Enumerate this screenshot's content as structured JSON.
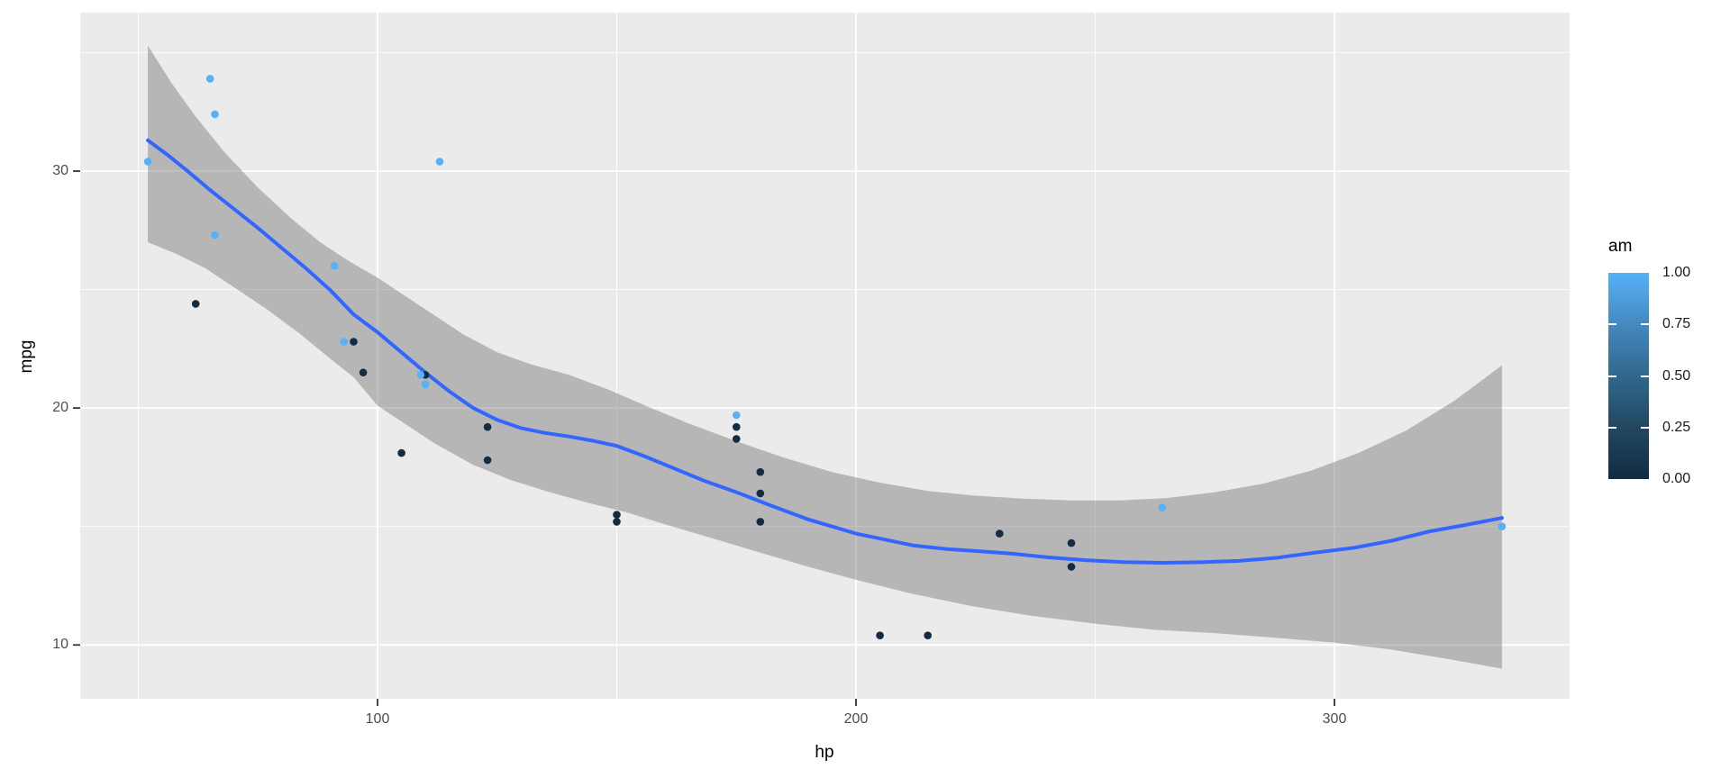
{
  "chart_data": {
    "type": "scatter",
    "title": "",
    "xlabel": "hp",
    "ylabel": "mpg",
    "x_domain": [
      37.85,
      349.15
    ],
    "y_domain": [
      7.73,
      36.69
    ],
    "x_major_ticks": [
      100,
      200,
      300
    ],
    "x_minor_ticks": [
      50,
      150,
      250
    ],
    "y_major_ticks": [
      10,
      20,
      30
    ],
    "y_minor_ticks": [
      15,
      25,
      35
    ],
    "grid": true,
    "legend_position": "right",
    "points_hp_mpg_am": [
      [
        110,
        21.0,
        1
      ],
      [
        110,
        21.0,
        1
      ],
      [
        93,
        22.8,
        1
      ],
      [
        110,
        21.4,
        0
      ],
      [
        175,
        18.7,
        0
      ],
      [
        105,
        18.1,
        0
      ],
      [
        245,
        14.3,
        0
      ],
      [
        62,
        24.4,
        0
      ],
      [
        95,
        22.8,
        0
      ],
      [
        123,
        19.2,
        0
      ],
      [
        123,
        17.8,
        0
      ],
      [
        180,
        16.4,
        0
      ],
      [
        180,
        17.3,
        0
      ],
      [
        180,
        15.2,
        0
      ],
      [
        205,
        10.4,
        0
      ],
      [
        215,
        10.4,
        0
      ],
      [
        230,
        14.7,
        0
      ],
      [
        66,
        32.4,
        1
      ],
      [
        52,
        30.4,
        1
      ],
      [
        65,
        33.9,
        1
      ],
      [
        97,
        21.5,
        0
      ],
      [
        150,
        15.5,
        0
      ],
      [
        150,
        15.2,
        0
      ],
      [
        245,
        13.3,
        0
      ],
      [
        175,
        19.2,
        0
      ],
      [
        66,
        27.3,
        1
      ],
      [
        91,
        26.0,
        1
      ],
      [
        113,
        30.4,
        1
      ],
      [
        264,
        15.8,
        1
      ],
      [
        175,
        19.7,
        1
      ],
      [
        335,
        15.0,
        1
      ],
      [
        109,
        21.4,
        1
      ]
    ],
    "smooth_line": [
      [
        52,
        31.3
      ],
      [
        56,
        30.7
      ],
      [
        60,
        30.05
      ],
      [
        65,
        29.2
      ],
      [
        70,
        28.4
      ],
      [
        75,
        27.6
      ],
      [
        80,
        26.75
      ],
      [
        85,
        25.9
      ],
      [
        90,
        25.0
      ],
      [
        95,
        23.95
      ],
      [
        100,
        23.2
      ],
      [
        105,
        22.35
      ],
      [
        110,
        21.5
      ],
      [
        115,
        20.7
      ],
      [
        120,
        20.0
      ],
      [
        125,
        19.5
      ],
      [
        130,
        19.15
      ],
      [
        135,
        18.95
      ],
      [
        140,
        18.8
      ],
      [
        145,
        18.62
      ],
      [
        150,
        18.4
      ],
      [
        156,
        17.95
      ],
      [
        162,
        17.45
      ],
      [
        168,
        16.95
      ],
      [
        175,
        16.45
      ],
      [
        182,
        15.9
      ],
      [
        190,
        15.3
      ],
      [
        195,
        15.0
      ],
      [
        200,
        14.7
      ],
      [
        206,
        14.45
      ],
      [
        212,
        14.2
      ],
      [
        219,
        14.05
      ],
      [
        226,
        13.95
      ],
      [
        233,
        13.85
      ],
      [
        240,
        13.7
      ],
      [
        248,
        13.58
      ],
      [
        256,
        13.5
      ],
      [
        264,
        13.47
      ],
      [
        272,
        13.49
      ],
      [
        280,
        13.55
      ],
      [
        288,
        13.68
      ],
      [
        296,
        13.9
      ],
      [
        304,
        14.1
      ],
      [
        312,
        14.4
      ],
      [
        320,
        14.8
      ],
      [
        327,
        15.05
      ],
      [
        335,
        15.36
      ]
    ],
    "ribbon_upper": [
      [
        52,
        35.3
      ],
      [
        57,
        33.7
      ],
      [
        62,
        32.3
      ],
      [
        68,
        30.8
      ],
      [
        75,
        29.3
      ],
      [
        82,
        28.0
      ],
      [
        88,
        27.0
      ],
      [
        94,
        26.2
      ],
      [
        100,
        25.5
      ],
      [
        106,
        24.7
      ],
      [
        112,
        23.9
      ],
      [
        118,
        23.1
      ],
      [
        125,
        22.35
      ],
      [
        132,
        21.85
      ],
      [
        140,
        21.4
      ],
      [
        148,
        20.8
      ],
      [
        156,
        20.1
      ],
      [
        165,
        19.35
      ],
      [
        175,
        18.6
      ],
      [
        185,
        17.9
      ],
      [
        195,
        17.3
      ],
      [
        205,
        16.85
      ],
      [
        215,
        16.5
      ],
      [
        225,
        16.3
      ],
      [
        235,
        16.18
      ],
      [
        245,
        16.1
      ],
      [
        255,
        16.1
      ],
      [
        265,
        16.2
      ],
      [
        275,
        16.45
      ],
      [
        285,
        16.8
      ],
      [
        295,
        17.35
      ],
      [
        305,
        18.1
      ],
      [
        315,
        19.05
      ],
      [
        325,
        20.3
      ],
      [
        335,
        21.8
      ]
    ],
    "ribbon_lower": [
      [
        52,
        27.0
      ],
      [
        58,
        26.5
      ],
      [
        64,
        25.9
      ],
      [
        70,
        25.1
      ],
      [
        77,
        24.15
      ],
      [
        84,
        23.1
      ],
      [
        90,
        22.1
      ],
      [
        95,
        21.3
      ],
      [
        100,
        20.1
      ],
      [
        106,
        19.3
      ],
      [
        112,
        18.5
      ],
      [
        120,
        17.6
      ],
      [
        128,
        16.95
      ],
      [
        136,
        16.45
      ],
      [
        144,
        16.0
      ],
      [
        152,
        15.6
      ],
      [
        160,
        15.1
      ],
      [
        170,
        14.5
      ],
      [
        180,
        13.9
      ],
      [
        190,
        13.3
      ],
      [
        200,
        12.75
      ],
      [
        212,
        12.15
      ],
      [
        224,
        11.65
      ],
      [
        236,
        11.25
      ],
      [
        250,
        10.9
      ],
      [
        262,
        10.65
      ],
      [
        275,
        10.5
      ],
      [
        288,
        10.3
      ],
      [
        300,
        10.1
      ],
      [
        312,
        9.8
      ],
      [
        324,
        9.4
      ],
      [
        335,
        9.0
      ]
    ],
    "legend": {
      "title": "am",
      "labels": [
        "1.00",
        "0.75",
        "0.50",
        "0.25",
        "0.00"
      ],
      "values": [
        1.0,
        0.75,
        0.5,
        0.25,
        0.0
      ],
      "gradient_stops": [
        "#56B1F7",
        "#4489C0",
        "#31688E",
        "#21485F",
        "#132B43"
      ]
    },
    "colors": {
      "am_high": "#56B1F7",
      "am_low": "#132B43",
      "smooth_line": "#3366FF",
      "ribbon": "rgba(102,102,102,0.4)",
      "panel_bg": "#EBEBEB",
      "grid": "#FFFFFF",
      "axis_text": "#4D4D4D",
      "tick_mark": "#333333"
    }
  }
}
